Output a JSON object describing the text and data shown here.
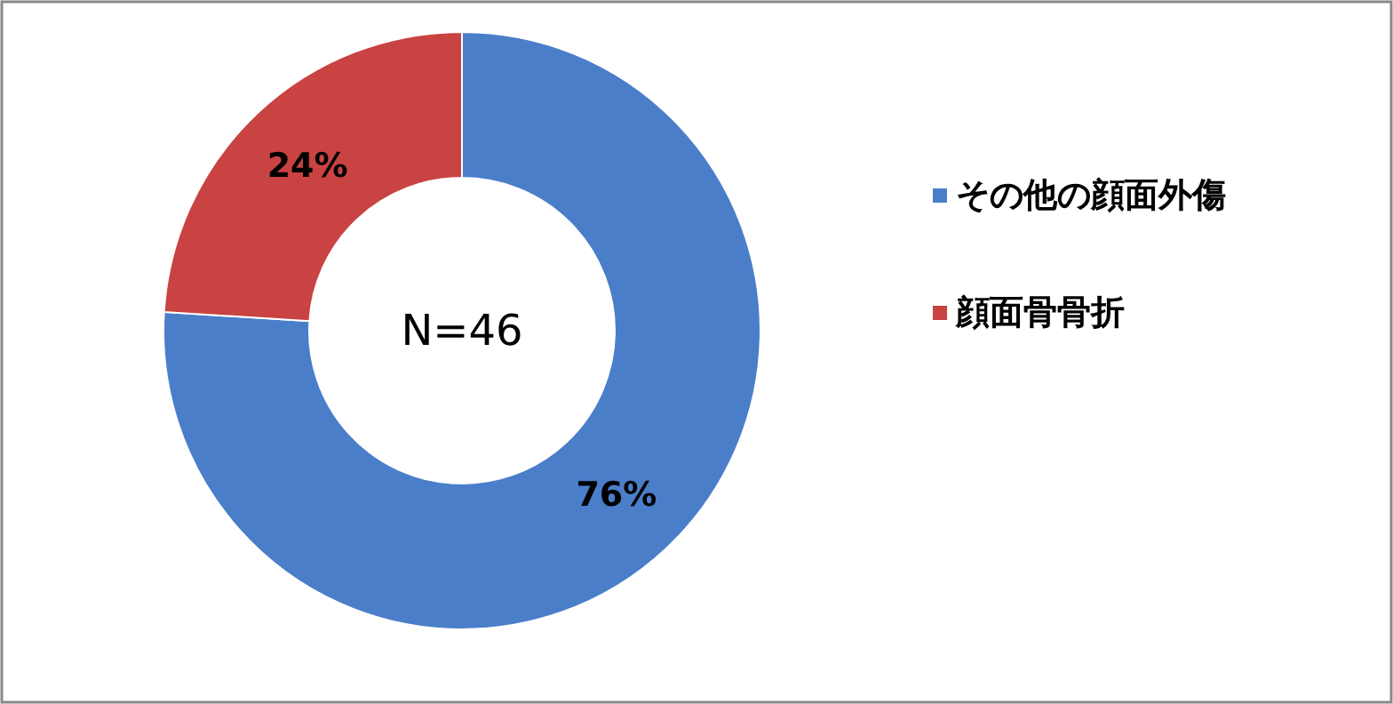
{
  "chart_data": {
    "type": "donut",
    "categories": [
      "その他の顔面外傷",
      "顔面骨骨折"
    ],
    "values": [
      76,
      24
    ],
    "colors": [
      "#4a7ec9",
      "#c84341"
    ],
    "value_labels": [
      "76%",
      "24%"
    ],
    "annotations": [
      "N=46"
    ],
    "legend": "right"
  }
}
